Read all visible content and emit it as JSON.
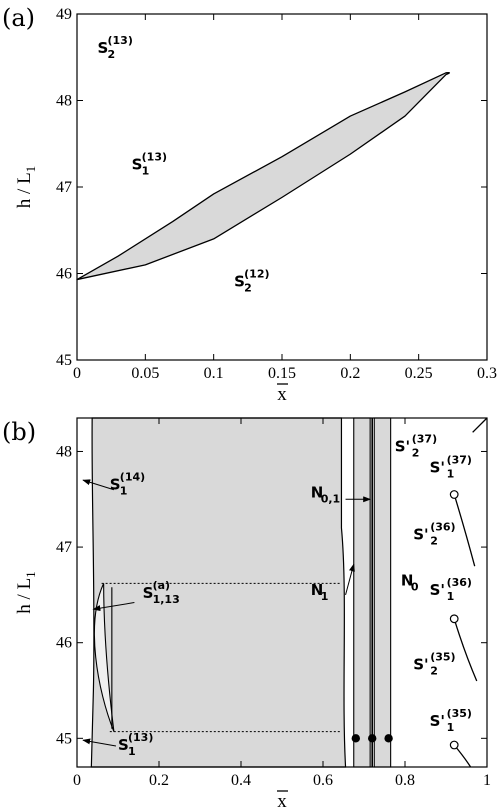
{
  "chart_data": [
    {
      "panel": "(a)",
      "type": "area",
      "xlabel": "x̄",
      "ylabel": "h / L1",
      "xlim": [
        0,
        0.3
      ],
      "ylim": [
        45,
        49
      ],
      "xticks": [
        "0",
        "0.05",
        "0.1",
        "0.15",
        "0.2",
        "0.25",
        "0.3"
      ],
      "yticks": [
        "45",
        "46",
        "47",
        "48",
        "49"
      ],
      "tongue_upper": [
        [
          0.0,
          45.93
        ],
        [
          0.03,
          46.2
        ],
        [
          0.07,
          46.6
        ],
        [
          0.1,
          46.92
        ],
        [
          0.15,
          47.35
        ],
        [
          0.2,
          47.82
        ],
        [
          0.24,
          48.1
        ],
        [
          0.27,
          48.32
        ]
      ],
      "tongue_lower": [
        [
          0.0,
          45.93
        ],
        [
          0.05,
          46.1
        ],
        [
          0.1,
          46.4
        ],
        [
          0.15,
          46.88
        ],
        [
          0.2,
          47.38
        ],
        [
          0.24,
          47.82
        ],
        [
          0.27,
          48.3
        ]
      ],
      "labels": [
        {
          "base": "S",
          "sub": "2",
          "sup": "(13)",
          "x": 0.015,
          "y": 48.55
        },
        {
          "base": "S",
          "sub": "1",
          "sup": "(13)",
          "x": 0.04,
          "y": 47.2
        },
        {
          "base": "S",
          "sub": "2",
          "sup": "(12)",
          "x": 0.115,
          "y": 45.85
        }
      ]
    },
    {
      "panel": "(b)",
      "type": "area",
      "xlabel": "x̄",
      "ylabel": "h / L1",
      "xlim": [
        0,
        1
      ],
      "ylim": [
        44.7,
        48.35
      ],
      "xticks": [
        "0",
        "0.2",
        "0.4",
        "0.6",
        "0.8",
        "1"
      ],
      "yticks": [
        "45",
        "46",
        "47",
        "48"
      ],
      "dotted_lines": [
        {
          "y": 46.62,
          "x0": 0.06,
          "x1": 0.645
        },
        {
          "y": 45.07,
          "x0": 0.08,
          "x1": 0.645
        }
      ],
      "filled_dots": [
        [
          0.68,
          45.0
        ],
        [
          0.72,
          45.0
        ],
        [
          0.76,
          45.0
        ]
      ],
      "open_dots": [
        [
          0.92,
          47.55
        ],
        [
          0.92,
          46.25
        ],
        [
          0.92,
          44.93
        ]
      ],
      "labels": [
        {
          "base": "S",
          "sub": "1",
          "sup": "(14)",
          "x": 0.08,
          "y": 47.6
        },
        {
          "base": "S",
          "sub": "1,13",
          "sup": "(a)",
          "x": 0.16,
          "y": 46.47
        },
        {
          "base": "S",
          "sub": "1",
          "sup": "(13)",
          "x": 0.1,
          "y": 44.88
        },
        {
          "base": "N",
          "sub": "0,1",
          "sup": "",
          "x": 0.57,
          "y": 47.52
        },
        {
          "base": "N",
          "sub": "1",
          "sup": "",
          "x": 0.57,
          "y": 46.5
        },
        {
          "base": "S'",
          "sub": "2",
          "sup": "(37)",
          "x": 0.775,
          "y": 48.0
        },
        {
          "base": "S'",
          "sub": "1",
          "sup": "(37̄)",
          "x": 0.86,
          "y": 47.78
        },
        {
          "base": "S'",
          "sub": "2",
          "sup": "(36)",
          "x": 0.82,
          "y": 47.08
        },
        {
          "base": "N",
          "sub": "0",
          "sup": "",
          "x": 0.79,
          "y": 46.6
        },
        {
          "base": "S'",
          "sub": "1",
          "sup": "(36)",
          "x": 0.86,
          "y": 46.5
        },
        {
          "base": "S'",
          "sub": "2",
          "sup": "(35)",
          "x": 0.82,
          "y": 45.72
        },
        {
          "base": "S'",
          "sub": "1",
          "sup": "(35)",
          "x": 0.86,
          "y": 45.13
        }
      ]
    }
  ]
}
